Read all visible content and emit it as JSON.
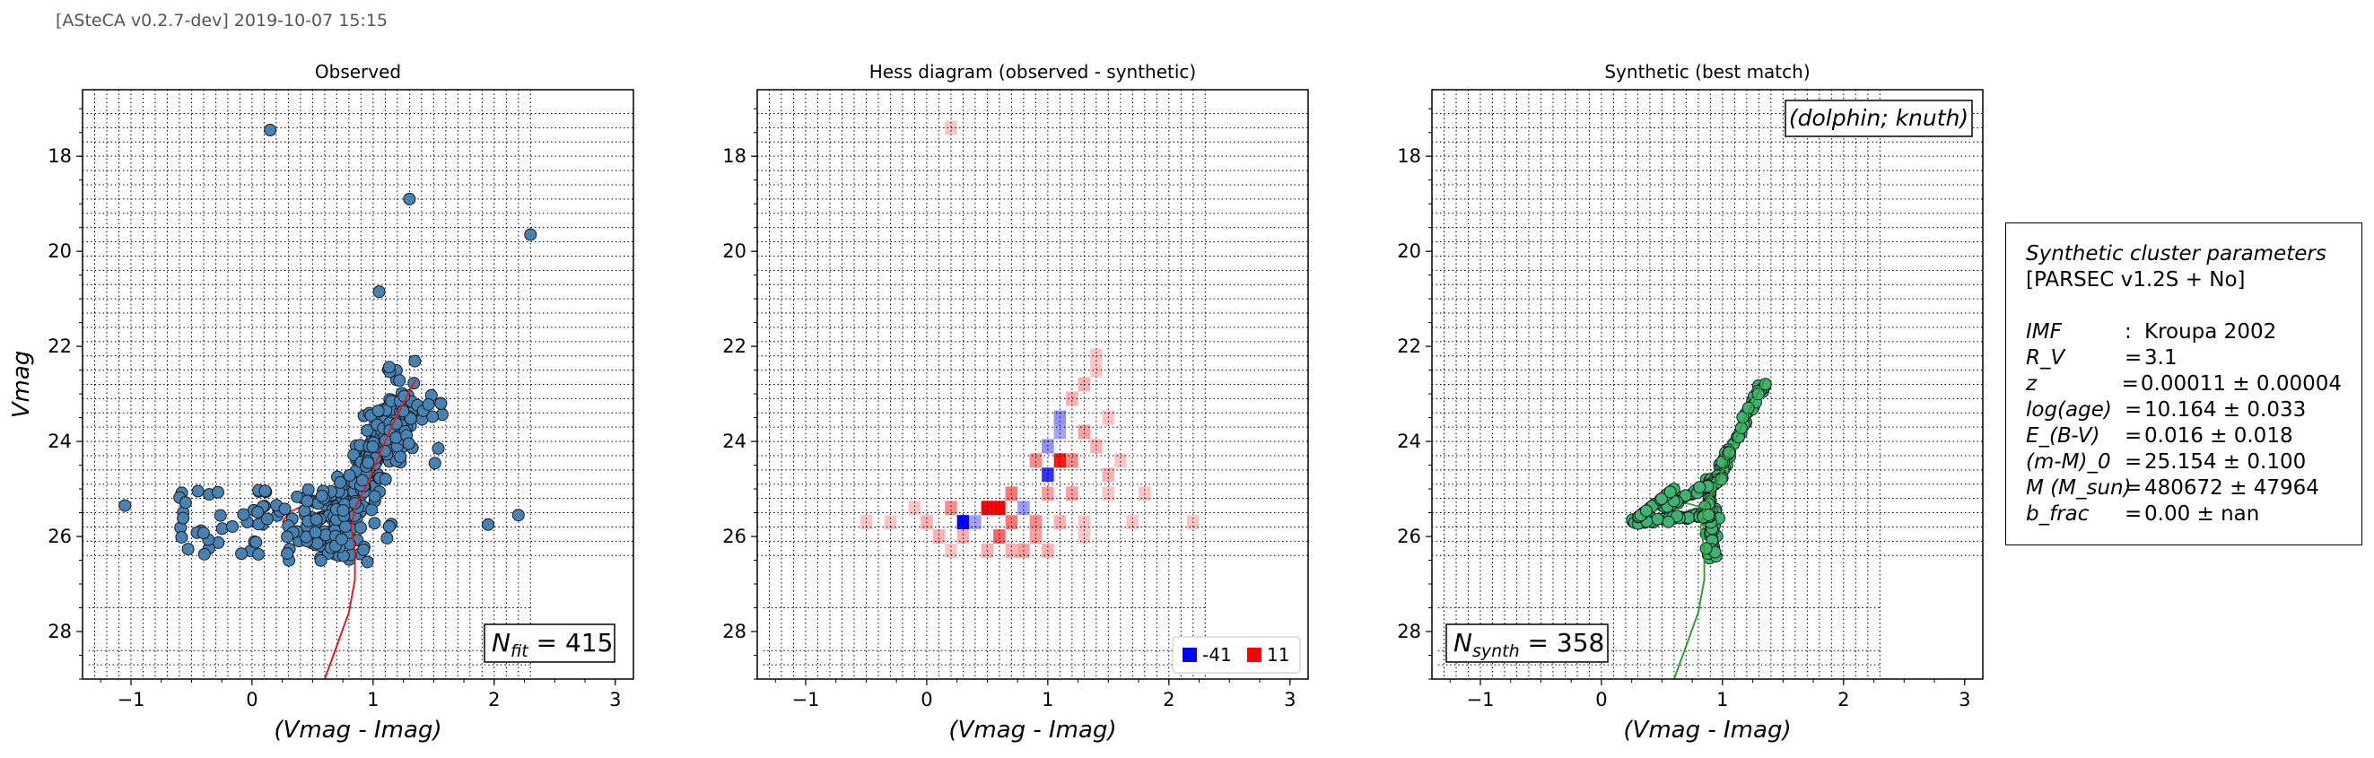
{
  "header": "[ASteCA v0.2.7-dev] 2019-10-07 15:15",
  "chart_data": [
    {
      "type": "scatter",
      "title": "Observed",
      "xlabel": "(Vmag - Imag)",
      "ylabel": "Vmag",
      "xlim": [
        -1.4,
        3.15
      ],
      "ylim": [
        29.0,
        16.6
      ],
      "xticks": [
        -1,
        0,
        1,
        2,
        3
      ],
      "yticks": [
        18,
        20,
        22,
        24,
        26,
        28
      ],
      "annotation": "N_fit = 415",
      "annotation_parts": {
        "sym": "N",
        "sub": "fit",
        "val": "= 415"
      },
      "marker_color": "#4682b4",
      "isochrone_color": "#e31a1c",
      "notable_points": [
        {
          "x": 0.15,
          "y": 17.45
        },
        {
          "x": 1.3,
          "y": 18.9
        },
        {
          "x": 2.3,
          "y": 19.65
        },
        {
          "x": 1.05,
          "y": 20.85
        },
        {
          "x": 1.95,
          "y": 25.75
        },
        {
          "x": 2.2,
          "y": 25.55
        },
        {
          "x": -1.05,
          "y": 25.35
        }
      ],
      "isochrone": [
        [
          0.6,
          29.0
        ],
        [
          0.7,
          28.3
        ],
        [
          0.8,
          27.6
        ],
        [
          0.85,
          26.9
        ],
        [
          0.85,
          26.3
        ],
        [
          0.82,
          25.8
        ],
        [
          0.85,
          25.4
        ],
        [
          0.95,
          24.9
        ],
        [
          1.05,
          24.3
        ],
        [
          1.15,
          23.7
        ],
        [
          1.25,
          23.2
        ],
        [
          1.35,
          22.7
        ]
      ],
      "isochrone_branch": [
        [
          0.85,
          25.4
        ],
        [
          0.55,
          25.2
        ],
        [
          0.3,
          25.5
        ],
        [
          0.25,
          25.7
        ]
      ]
    },
    {
      "type": "heatmap",
      "title": "Hess diagram (observed - synthetic)",
      "xlabel": "(Vmag - Imag)",
      "xlim": [
        -1.4,
        3.15
      ],
      "ylim": [
        29.0,
        16.6
      ],
      "xticks": [
        -1,
        0,
        1,
        2,
        3
      ],
      "yticks": [
        18,
        20,
        22,
        24,
        26,
        28
      ],
      "legend": [
        {
          "label": "-41",
          "color": "#0000ff"
        },
        {
          "label": "11",
          "color": "#ff0000"
        }
      ],
      "cells": [
        {
          "x": 0.3,
          "y": 25.7,
          "v": -41
        },
        {
          "x": 0.5,
          "y": 25.4,
          "v": 11
        },
        {
          "x": 0.6,
          "y": 25.4,
          "v": 11
        },
        {
          "x": 1.0,
          "y": 24.7,
          "v": -30
        },
        {
          "x": 1.1,
          "y": 24.4,
          "v": 10
        },
        {
          "x": 0.9,
          "y": 24.4,
          "v": 4
        },
        {
          "x": 1.0,
          "y": 24.1,
          "v": -10
        },
        {
          "x": 1.1,
          "y": 23.5,
          "v": -10
        },
        {
          "x": 1.1,
          "y": 23.8,
          "v": -6
        },
        {
          "x": 0.7,
          "y": 25.1,
          "v": 5
        },
        {
          "x": 0.8,
          "y": 25.4,
          "v": -8
        },
        {
          "x": 0.9,
          "y": 25.7,
          "v": 4
        },
        {
          "x": 0.4,
          "y": 25.7,
          "v": -6
        },
        {
          "x": 0.2,
          "y": 25.4,
          "v": 4
        },
        {
          "x": 0.6,
          "y": 26.0,
          "v": 6
        },
        {
          "x": 0.7,
          "y": 25.7,
          "v": 5
        },
        {
          "x": 1.2,
          "y": 24.4,
          "v": 4
        },
        {
          "x": 1.3,
          "y": 23.8,
          "v": 3
        },
        {
          "x": 1.2,
          "y": 23.1,
          "v": 2
        },
        {
          "x": 1.3,
          "y": 22.8,
          "v": 2
        },
        {
          "x": 1.4,
          "y": 22.5,
          "v": 1
        },
        {
          "x": 1.4,
          "y": 24.1,
          "v": 2
        },
        {
          "x": 1.5,
          "y": 24.7,
          "v": 2
        },
        {
          "x": 1.5,
          "y": 25.1,
          "v": 1
        },
        {
          "x": 1.2,
          "y": 25.1,
          "v": 3
        },
        {
          "x": 1.0,
          "y": 25.1,
          "v": 3
        },
        {
          "x": 0.9,
          "y": 26.0,
          "v": 3
        },
        {
          "x": 0.7,
          "y": 26.3,
          "v": 2
        },
        {
          "x": 0.5,
          "y": 26.3,
          "v": 2
        },
        {
          "x": 0.8,
          "y": 26.3,
          "v": 3
        },
        {
          "x": 1.1,
          "y": 25.7,
          "v": 2
        },
        {
          "x": 1.3,
          "y": 25.7,
          "v": 1
        },
        {
          "x": 0.0,
          "y": 25.7,
          "v": 2
        },
        {
          "x": -0.1,
          "y": 25.4,
          "v": 1
        },
        {
          "x": -0.3,
          "y": 25.7,
          "v": 1
        },
        {
          "x": -0.5,
          "y": 25.7,
          "v": 1
        },
        {
          "x": 0.1,
          "y": 26.0,
          "v": 2
        },
        {
          "x": 0.3,
          "y": 26.0,
          "v": 2
        },
        {
          "x": 1.3,
          "y": 26.0,
          "v": 1
        },
        {
          "x": 1.7,
          "y": 25.7,
          "v": 1
        },
        {
          "x": 1.6,
          "y": 24.4,
          "v": 1
        },
        {
          "x": 1.0,
          "y": 26.3,
          "v": 2
        },
        {
          "x": 0.2,
          "y": 26.3,
          "v": 1
        },
        {
          "x": 1.8,
          "y": 25.1,
          "v": 1
        },
        {
          "x": 2.2,
          "y": 25.7,
          "v": 1
        },
        {
          "x": 0.2,
          "y": 17.4,
          "v": 1
        },
        {
          "x": 1.4,
          "y": 22.2,
          "v": 1
        },
        {
          "x": 1.5,
          "y": 23.5,
          "v": 1
        }
      ]
    },
    {
      "type": "scatter",
      "title": "Synthetic (best match)",
      "xlabel": "(Vmag - Imag)",
      "xlim": [
        -1.4,
        3.15
      ],
      "ylim": [
        29.0,
        16.6
      ],
      "xticks": [
        -1,
        0,
        1,
        2,
        3
      ],
      "yticks": [
        18,
        20,
        22,
        24,
        26,
        28
      ],
      "box_label": "(dolphin; knuth)",
      "annotation": "N_synth = 358",
      "annotation_parts": {
        "sym": "N",
        "sub": "synth",
        "val": "= 358"
      },
      "marker_color": "#3cb371",
      "isochrone_color": "#2ca02c",
      "isochrone": [
        [
          0.6,
          29.0
        ],
        [
          0.7,
          28.3
        ],
        [
          0.8,
          27.6
        ],
        [
          0.85,
          26.9
        ],
        [
          0.85,
          26.3
        ],
        [
          0.82,
          25.8
        ],
        [
          0.85,
          25.4
        ],
        [
          0.95,
          24.9
        ],
        [
          1.05,
          24.3
        ],
        [
          1.15,
          23.7
        ],
        [
          1.25,
          23.2
        ],
        [
          1.35,
          22.7
        ]
      ],
      "isochrone_branch": [
        [
          0.85,
          25.4
        ],
        [
          0.55,
          25.2
        ],
        [
          0.3,
          25.5
        ],
        [
          0.25,
          25.7
        ]
      ]
    }
  ],
  "params": {
    "title": "Synthetic cluster parameters",
    "subtitle": "[PARSEC v1.2S + No]",
    "rows": [
      {
        "key": "IMF",
        "sep": ":",
        "val": "Kroupa 2002"
      },
      {
        "key": "R_V",
        "sep": "=",
        "val": "3.1"
      },
      {
        "key": "z",
        "sep": "=",
        "val": "0.00011 ± 0.00004"
      },
      {
        "key": "log(age)",
        "sep": "=",
        "val": "10.164 ± 0.033"
      },
      {
        "key": "E_(B-V)",
        "sep": "=",
        "val": "0.016 ± 0.018"
      },
      {
        "key": "(m-M)_0",
        "sep": "=",
        "val": "25.154 ± 0.100"
      },
      {
        "key": "M (M_sun)",
        "sep": "=",
        "val": "480672 ± 47964"
      },
      {
        "key": "b_frac",
        "sep": "=",
        "val": "0.00 ± nan"
      }
    ]
  }
}
